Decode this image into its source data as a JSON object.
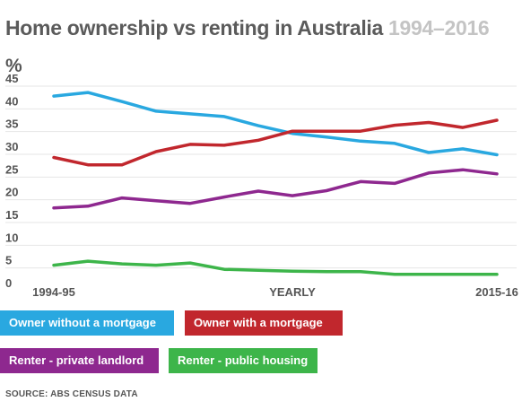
{
  "title": {
    "main": "Home ownership vs renting in Australia",
    "years": "1994–2016"
  },
  "unit_label": "%",
  "source": "SOURCE: ABS CENSUS DATA",
  "colors": {
    "owner_outright": "#29a8e0",
    "owner_mortgage": "#c1272d",
    "renter_private": "#8e288f",
    "renter_public": "#3db54a"
  },
  "legend": {
    "owner_outright": "Owner without a mortgage",
    "owner_mortgage": "Owner with a mortgage",
    "renter_private": "Renter - private landlord",
    "renter_public": "Renter - public housing"
  },
  "chart_data": {
    "type": "line",
    "title": "Home ownership vs renting in Australia 1994–2016",
    "ylabel": "%",
    "xlabel": "YEARLY",
    "ylim": [
      0,
      45
    ],
    "yticks": [
      0,
      5,
      10,
      15,
      20,
      25,
      30,
      35,
      40,
      45
    ],
    "x_tick_labels": [
      {
        "index": 0,
        "text": "1994-95"
      },
      {
        "index": 7,
        "text": "YEARLY"
      },
      {
        "index": 13,
        "text": "2015-16"
      }
    ],
    "grid": true,
    "series": [
      {
        "key": "owner_outright",
        "name": "Owner without a mortgage",
        "values": [
          42.8,
          43.6,
          41.6,
          39.5,
          38.9,
          38.3,
          36.3,
          34.6,
          33.8,
          32.9,
          32.4,
          30.4,
          31.2,
          29.9
        ]
      },
      {
        "key": "owner_mortgage",
        "name": "Owner with a mortgage",
        "values": [
          29.3,
          27.7,
          27.7,
          30.6,
          32.2,
          32.0,
          33.1,
          35.1,
          35.1,
          35.1,
          36.4,
          37.0,
          35.9,
          37.5
        ]
      },
      {
        "key": "renter_private",
        "name": "Renter - private landlord",
        "values": [
          18.2,
          18.6,
          20.4,
          19.8,
          19.2,
          20.6,
          21.9,
          20.9,
          22.0,
          24.0,
          23.6,
          25.9,
          26.6,
          25.7
        ]
      },
      {
        "key": "renter_public",
        "name": "Renter - public housing",
        "values": [
          5.6,
          6.5,
          5.9,
          5.6,
          6.1,
          4.7,
          4.5,
          4.3,
          4.2,
          4.2,
          3.6,
          3.6,
          3.6,
          3.6
        ]
      }
    ]
  }
}
